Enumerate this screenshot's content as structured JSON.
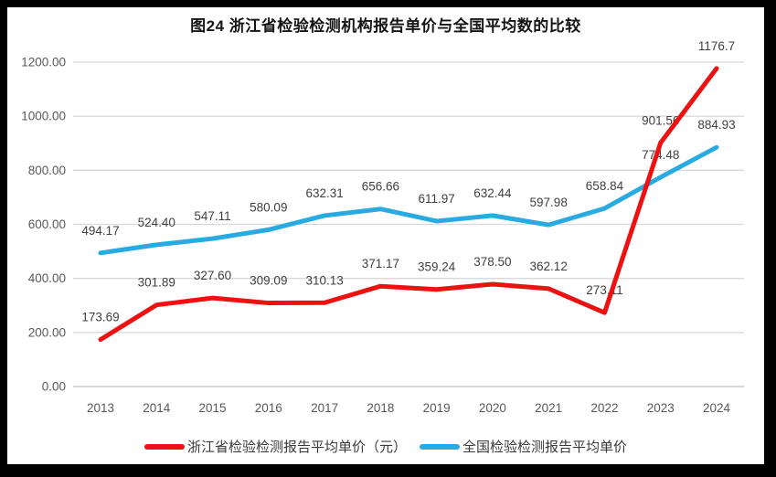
{
  "chart_data": {
    "type": "line",
    "title": "图24  浙江省检验检测机构报告单价与全国平均数的比较",
    "categories": [
      "2013",
      "2014",
      "2015",
      "2016",
      "2017",
      "2018",
      "2019",
      "2020",
      "2021",
      "2022",
      "2023",
      "2024"
    ],
    "series": [
      {
        "name": "浙江省检验检测报告平均单价（元）",
        "color": "#ee1111",
        "values": [
          173.69,
          301.89,
          327.6,
          309.09,
          310.13,
          371.17,
          359.24,
          378.5,
          362.12,
          273.11,
          901.56,
          1176.7
        ],
        "labels": [
          "173.69",
          "301.89",
          "327.60",
          "309.09",
          "310.13",
          "371.17",
          "359.24",
          "378.50",
          "362.12",
          "273.11",
          "901.56",
          "1176.7"
        ]
      },
      {
        "name": "全国检验检测报告平均单价",
        "color": "#29abe2",
        "values": [
          494.17,
          524.4,
          547.11,
          580.09,
          632.31,
          656.66,
          611.97,
          632.44,
          597.98,
          658.84,
          774.48,
          884.93
        ],
        "labels": [
          "494.17",
          "524.40",
          "547.11",
          "580.09",
          "632.31",
          "656.66",
          "611.97",
          "632.44",
          "597.98",
          "658.84",
          "774.48",
          "884.93"
        ]
      }
    ],
    "xlabel": "",
    "ylabel": "",
    "ylim": [
      0,
      1200
    ],
    "ytick_step": 200,
    "ytick_labels": [
      "0.00",
      "200.00",
      "400.00",
      "600.00",
      "800.00",
      "1000.00",
      "1200.00"
    ],
    "grid": true,
    "legend_position": "bottom",
    "colors": {
      "gridline": "#d9d9d9",
      "axis_line": "#c0c0c0",
      "tick_label": "#595959",
      "data_label": "#404040",
      "frame_border": "#000000",
      "plot_background": "#ffffff"
    }
  }
}
